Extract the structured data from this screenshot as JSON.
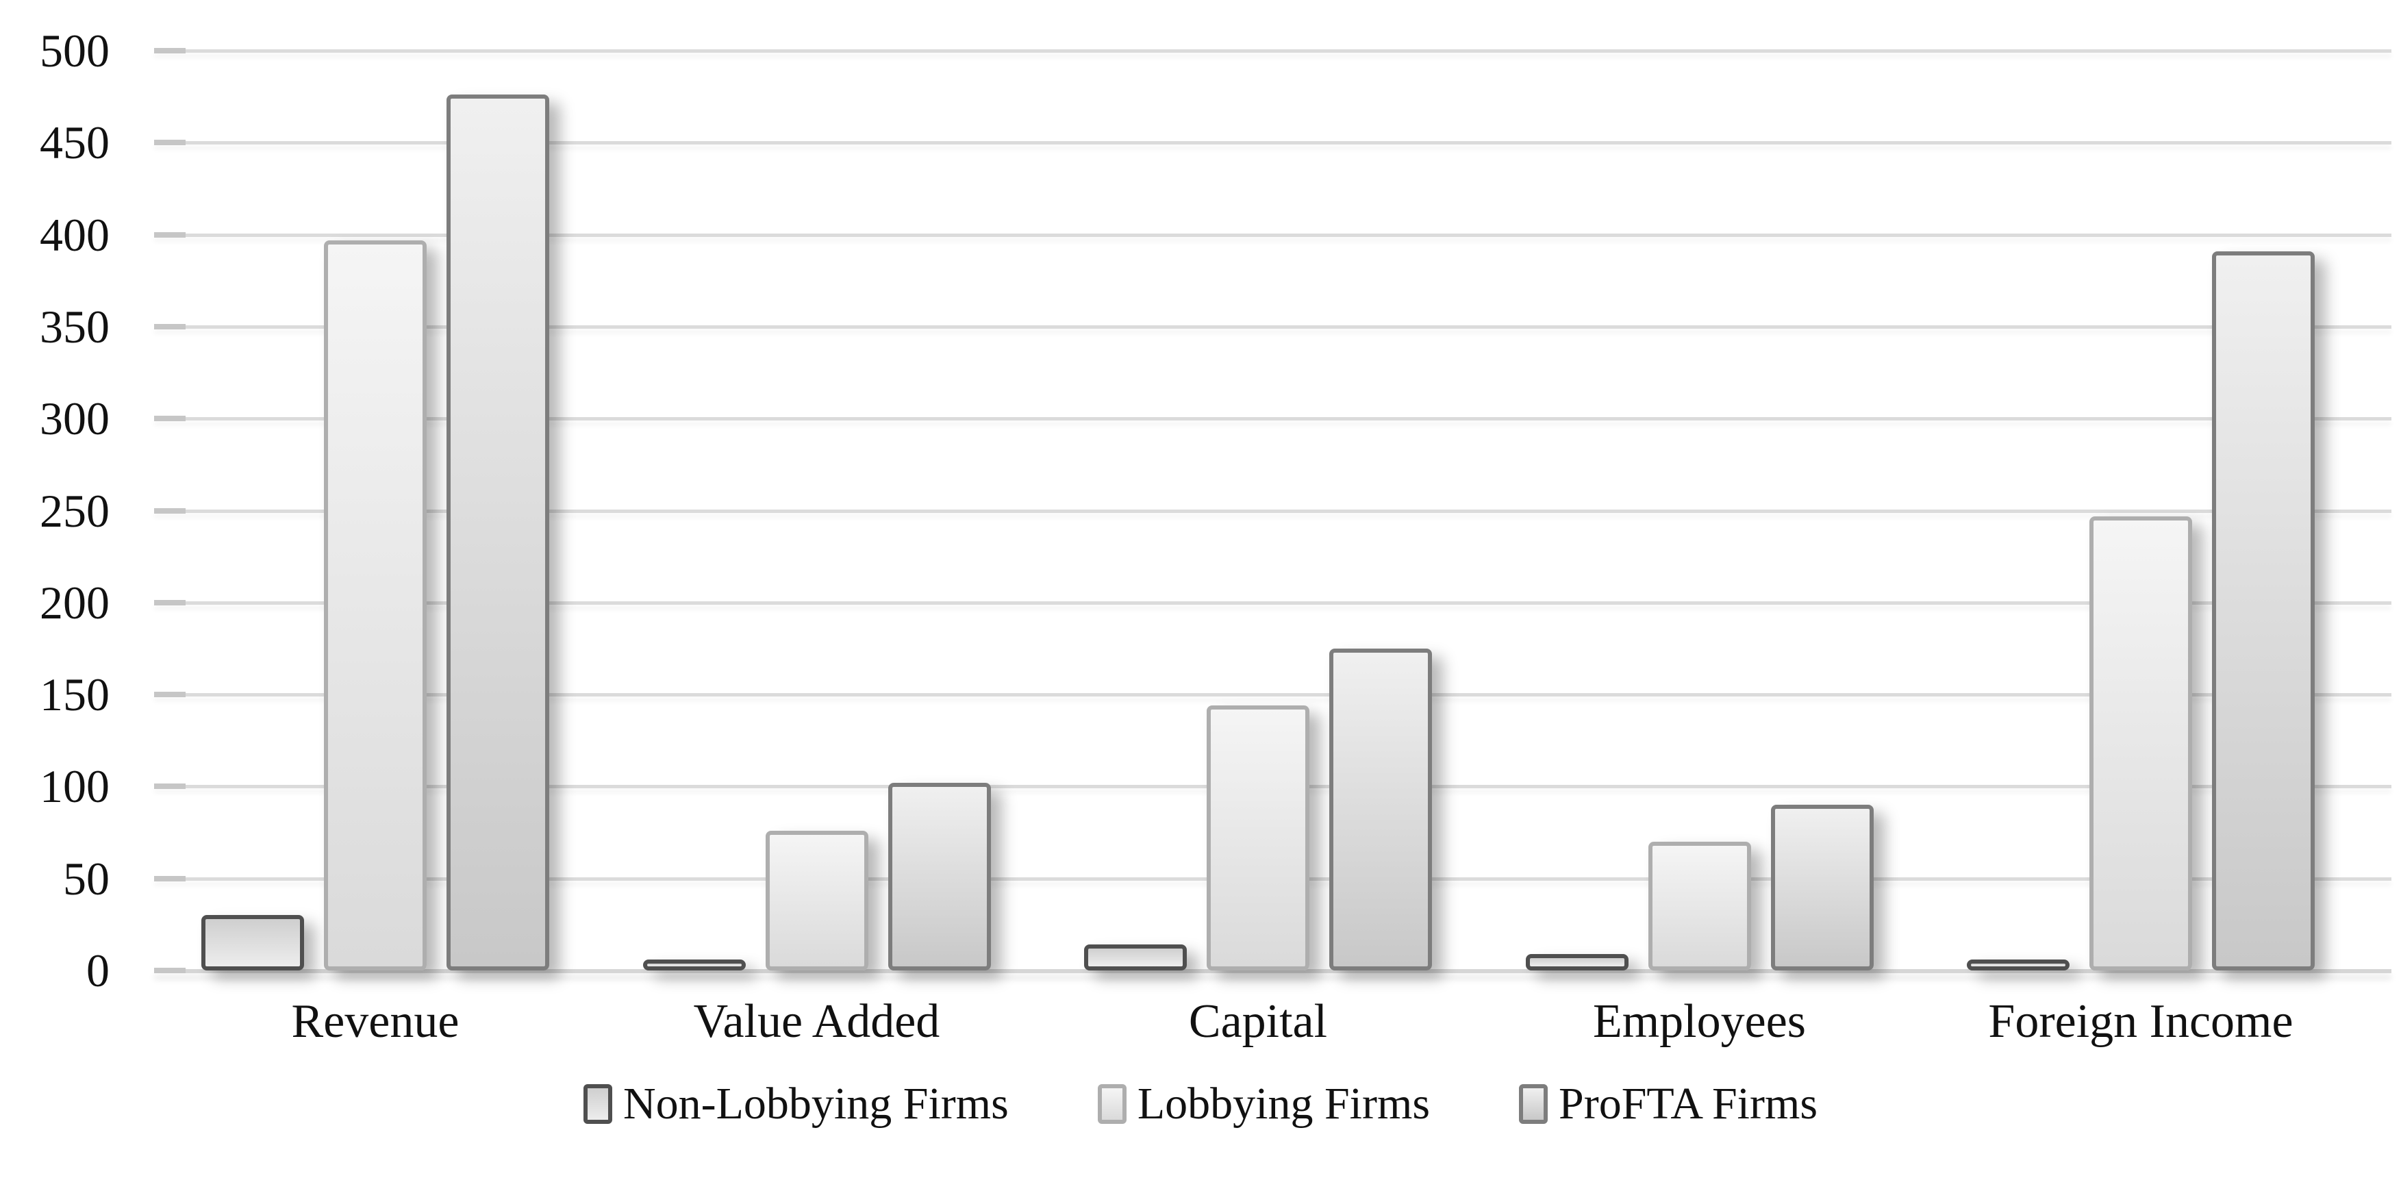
{
  "chart_data": {
    "type": "bar",
    "title": "",
    "xlabel": "",
    "ylabel": "",
    "categories": [
      "Revenue",
      "Value Added",
      "Capital",
      "Employees",
      "Foreign Income"
    ],
    "series": [
      {
        "name": "Non-Lobbying Firms",
        "values": [
          30,
          6,
          14,
          9,
          6
        ]
      },
      {
        "name": "Lobbying Firms",
        "values": [
          397,
          76,
          144,
          70,
          247
        ]
      },
      {
        "name": "ProFTA Firms",
        "values": [
          476,
          102,
          175,
          90,
          391
        ]
      }
    ],
    "ylim": [
      0,
      500
    ],
    "yticks": [
      0,
      50,
      100,
      150,
      200,
      250,
      300,
      350,
      400,
      450,
      500
    ],
    "grid": true,
    "legend_position": "bottom"
  },
  "styles": {
    "background": "#ffffff",
    "text_color": "#111111",
    "gridline_color": "#dbdbdb",
    "axis_line_color": "#d6d6d6",
    "tick_color": "#c6c6c6",
    "series_styles": [
      {
        "name": "Non-Lobbying Firms",
        "border": "#4f4f4f",
        "fill_top": "#cfcfcf",
        "fill_bottom": "#ededed"
      },
      {
        "name": "Lobbying Firms",
        "border": "#aeaeae",
        "fill_top": "#f5f5f5",
        "fill_bottom": "#dadada"
      },
      {
        "name": "ProFTA Firms",
        "border": "#7d7d7d",
        "fill_top": "#f0f0f0",
        "fill_bottom": "#c8c8c8"
      }
    ]
  }
}
